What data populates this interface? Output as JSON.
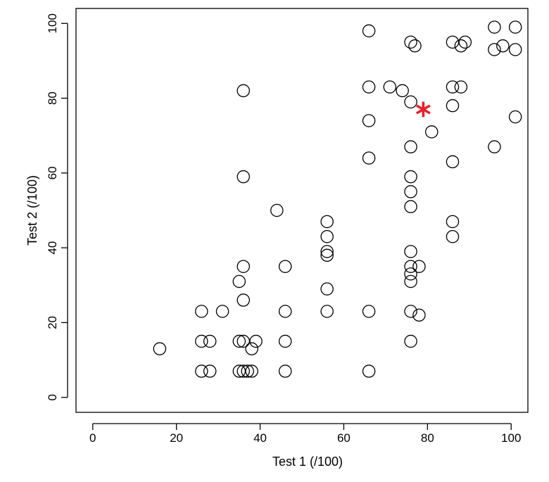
{
  "chart_data": {
    "type": "scatter",
    "xlabel": "Test 1 (/100)",
    "ylabel": "Test 2 (/100)",
    "xlim": [
      -4,
      104
    ],
    "ylim": [
      -4,
      104
    ],
    "xticks": [
      0,
      20,
      40,
      60,
      80,
      100
    ],
    "yticks": [
      0,
      20,
      40,
      60,
      80,
      100
    ],
    "grid": false,
    "marker_color": "#000000",
    "highlight_color": "#e8202a",
    "points": [
      {
        "x": 16,
        "y": 13
      },
      {
        "x": 26,
        "y": 23
      },
      {
        "x": 26,
        "y": 15
      },
      {
        "x": 28,
        "y": 15
      },
      {
        "x": 26,
        "y": 7
      },
      {
        "x": 28,
        "y": 7
      },
      {
        "x": 31,
        "y": 23
      },
      {
        "x": 35,
        "y": 31
      },
      {
        "x": 35,
        "y": 15
      },
      {
        "x": 35,
        "y": 7
      },
      {
        "x": 36,
        "y": 82
      },
      {
        "x": 36,
        "y": 59
      },
      {
        "x": 36,
        "y": 35
      },
      {
        "x": 36,
        "y": 26
      },
      {
        "x": 36,
        "y": 15
      },
      {
        "x": 36,
        "y": 7
      },
      {
        "x": 37,
        "y": 7
      },
      {
        "x": 38,
        "y": 13
      },
      {
        "x": 38,
        "y": 7
      },
      {
        "x": 39,
        "y": 15
      },
      {
        "x": 44,
        "y": 50
      },
      {
        "x": 46,
        "y": 35
      },
      {
        "x": 46,
        "y": 23
      },
      {
        "x": 46,
        "y": 15
      },
      {
        "x": 46,
        "y": 7
      },
      {
        "x": 56,
        "y": 47
      },
      {
        "x": 56,
        "y": 43
      },
      {
        "x": 56,
        "y": 39
      },
      {
        "x": 56,
        "y": 38
      },
      {
        "x": 56,
        "y": 29
      },
      {
        "x": 56,
        "y": 23
      },
      {
        "x": 66,
        "y": 98
      },
      {
        "x": 66,
        "y": 83
      },
      {
        "x": 66,
        "y": 74
      },
      {
        "x": 66,
        "y": 64
      },
      {
        "x": 66,
        "y": 23
      },
      {
        "x": 66,
        "y": 7
      },
      {
        "x": 71,
        "y": 83
      },
      {
        "x": 74,
        "y": 82
      },
      {
        "x": 76,
        "y": 95
      },
      {
        "x": 76,
        "y": 79
      },
      {
        "x": 76,
        "y": 67
      },
      {
        "x": 76,
        "y": 59
      },
      {
        "x": 76,
        "y": 55
      },
      {
        "x": 76,
        "y": 51
      },
      {
        "x": 76,
        "y": 39
      },
      {
        "x": 76,
        "y": 35
      },
      {
        "x": 76,
        "y": 33
      },
      {
        "x": 76,
        "y": 31
      },
      {
        "x": 76,
        "y": 23
      },
      {
        "x": 76,
        "y": 15
      },
      {
        "x": 77,
        "y": 94
      },
      {
        "x": 78,
        "y": 35
      },
      {
        "x": 78,
        "y": 22
      },
      {
        "x": 81,
        "y": 71
      },
      {
        "x": 86,
        "y": 95
      },
      {
        "x": 86,
        "y": 83
      },
      {
        "x": 86,
        "y": 78
      },
      {
        "x": 86,
        "y": 63
      },
      {
        "x": 86,
        "y": 47
      },
      {
        "x": 86,
        "y": 43
      },
      {
        "x": 88,
        "y": 94
      },
      {
        "x": 88,
        "y": 83
      },
      {
        "x": 89,
        "y": 95
      },
      {
        "x": 96,
        "y": 99
      },
      {
        "x": 96,
        "y": 93
      },
      {
        "x": 96,
        "y": 67
      },
      {
        "x": 98,
        "y": 94
      },
      {
        "x": 101,
        "y": 99
      },
      {
        "x": 101,
        "y": 93
      },
      {
        "x": 101,
        "y": 75
      }
    ],
    "highlight": {
      "x": 79,
      "y": 77,
      "marker": "*"
    }
  }
}
